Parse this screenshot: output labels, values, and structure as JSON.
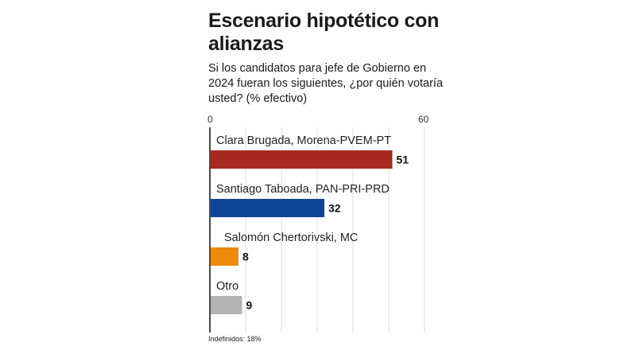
{
  "chart_data": {
    "type": "bar",
    "orientation": "horizontal",
    "title": "Escenario hipotético con alianzas",
    "subtitle": "Si los candidatos para jefe de Gobierno en 2024 fueran los siguientes, ¿por quién votaría usted? (% efectivo)",
    "categories": [
      "Clara Brugada, Morena-PVEM-PT",
      "Santiago Taboada, PAN-PRI-PRD",
      "Salomón Chertorivski, MC",
      "Otro"
    ],
    "values": [
      51,
      32,
      8,
      9
    ],
    "colors": [
      "#a8291f",
      "#0e4596",
      "#ee8a0c",
      "#b3b3b3"
    ],
    "xlim": [
      0,
      60
    ],
    "tick_labels": [
      "0",
      "60"
    ],
    "grid": true,
    "note": "Indefinidos: 18%"
  }
}
